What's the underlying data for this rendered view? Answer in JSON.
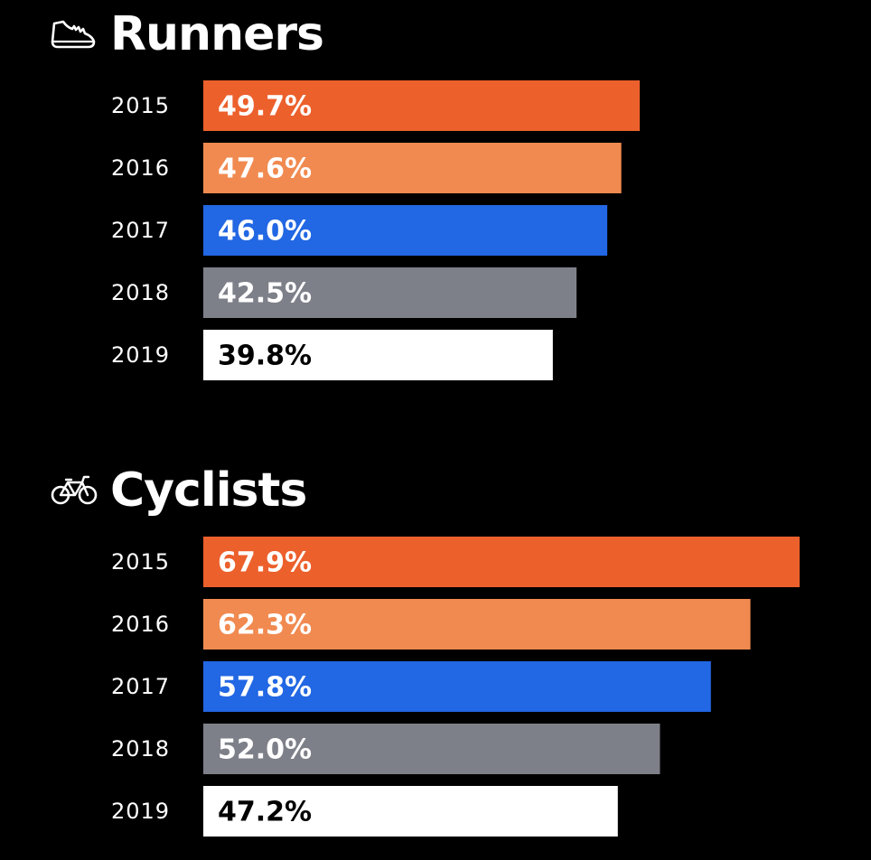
{
  "chart_data": [
    {
      "type": "bar",
      "orientation": "horizontal",
      "title": "Runners",
      "icon": "running-shoe-icon",
      "categories": [
        "2015",
        "2016",
        "2017",
        "2018",
        "2019"
      ],
      "values": [
        49.7,
        47.6,
        46.0,
        42.5,
        39.8
      ],
      "value_labels": [
        "49.7%",
        "47.6%",
        "46.0%",
        "42.5%",
        "39.8%"
      ],
      "colors": [
        "#ec602c",
        "#f18a50",
        "#2267e3",
        "#7e8089",
        "#ffffff"
      ],
      "label_colors": [
        "#ffffff",
        "#ffffff",
        "#ffffff",
        "#ffffff",
        "#000000"
      ],
      "unit": "%",
      "xlim": [
        0,
        84
      ],
      "grid": false,
      "legend": "none"
    },
    {
      "type": "bar",
      "orientation": "horizontal",
      "title": "Cyclists",
      "icon": "bicycle-icon",
      "categories": [
        "2015",
        "2016",
        "2017",
        "2018",
        "2019"
      ],
      "values": [
        67.9,
        62.3,
        57.8,
        52.0,
        47.2
      ],
      "value_labels": [
        "67.9%",
        "62.3%",
        "57.8%",
        "52.0%",
        "47.2%"
      ],
      "colors": [
        "#ec602c",
        "#f18a50",
        "#2267e3",
        "#7e8089",
        "#ffffff"
      ],
      "label_colors": [
        "#ffffff",
        "#ffffff",
        "#ffffff",
        "#ffffff",
        "#000000"
      ],
      "unit": "%",
      "xlim": [
        0,
        84
      ],
      "grid": false,
      "legend": "none"
    }
  ]
}
